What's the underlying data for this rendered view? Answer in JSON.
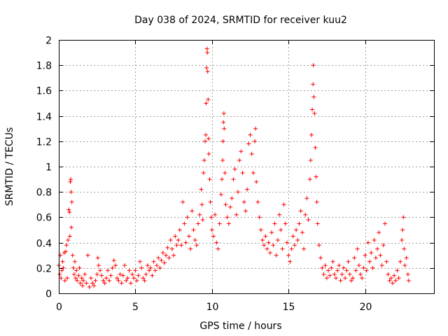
{
  "chart_data": {
    "type": "scatter",
    "title": "Day 038 of 2024, SRMTID for receiver kuu2",
    "xlabel": "GPS time / hours",
    "ylabel": "SRMTID / TECUs",
    "xlim": [
      0,
      24.5
    ],
    "ylim": [
      0,
      2
    ],
    "xticks": [
      0,
      5,
      10,
      15,
      20
    ],
    "yticks": [
      0,
      0.2,
      0.4,
      0.6,
      0.8,
      1,
      1.2,
      1.4,
      1.6,
      1.8,
      2
    ],
    "xtick_labels": [
      "0",
      "5",
      "10",
      "15",
      "20"
    ],
    "ytick_labels": [
      "0",
      "0.2",
      "0.4",
      "0.6",
      "0.8",
      "1",
      "1.2",
      "1.4",
      "1.6",
      "1.8",
      "2"
    ],
    "grid": true,
    "marker": "+",
    "color": "#ff0000",
    "series": [
      {
        "name": "SRMTID",
        "points": [
          [
            0.0,
            0.22
          ],
          [
            0.05,
            0.15
          ],
          [
            0.1,
            0.3
          ],
          [
            0.15,
            0.12
          ],
          [
            0.2,
            0.18
          ],
          [
            0.25,
            0.25
          ],
          [
            0.3,
            0.2
          ],
          [
            0.35,
            0.32
          ],
          [
            0.4,
            0.1
          ],
          [
            0.45,
            0.33
          ],
          [
            0.5,
            0.38
          ],
          [
            0.55,
            0.12
          ],
          [
            0.6,
            0.42
          ],
          [
            0.65,
            0.66
          ],
          [
            0.7,
            0.64
          ],
          [
            0.72,
            0.45
          ],
          [
            0.75,
            0.88
          ],
          [
            0.78,
            0.9
          ],
          [
            0.8,
            0.8
          ],
          [
            0.82,
            0.52
          ],
          [
            0.85,
            0.72
          ],
          [
            0.9,
            0.3
          ],
          [
            0.95,
            0.2
          ],
          [
            1.0,
            0.15
          ],
          [
            1.05,
            0.25
          ],
          [
            1.1,
            0.12
          ],
          [
            1.15,
            0.18
          ],
          [
            1.2,
            0.1
          ],
          [
            1.3,
            0.14
          ],
          [
            1.35,
            0.2
          ],
          [
            1.4,
            0.08
          ],
          [
            1.5,
            0.12
          ],
          [
            1.55,
            0.06
          ],
          [
            1.6,
            0.1
          ],
          [
            1.7,
            0.15
          ],
          [
            1.8,
            0.08
          ],
          [
            1.9,
            0.3
          ],
          [
            2.0,
            0.05
          ],
          [
            2.1,
            0.12
          ],
          [
            2.2,
            0.08
          ],
          [
            2.3,
            0.06
          ],
          [
            2.4,
            0.1
          ],
          [
            2.5,
            0.15
          ],
          [
            2.55,
            0.28
          ],
          [
            2.6,
            0.22
          ],
          [
            2.7,
            0.18
          ],
          [
            2.8,
            0.14
          ],
          [
            2.9,
            0.1
          ],
          [
            3.0,
            0.08
          ],
          [
            3.1,
            0.12
          ],
          [
            3.2,
            0.18
          ],
          [
            3.3,
            0.1
          ],
          [
            3.4,
            0.14
          ],
          [
            3.5,
            0.2
          ],
          [
            3.6,
            0.26
          ],
          [
            3.7,
            0.22
          ],
          [
            3.8,
            0.12
          ],
          [
            3.9,
            0.1
          ],
          [
            4.0,
            0.15
          ],
          [
            4.1,
            0.08
          ],
          [
            4.2,
            0.14
          ],
          [
            4.3,
            0.22
          ],
          [
            4.4,
            0.1
          ],
          [
            4.5,
            0.12
          ],
          [
            4.6,
            0.18
          ],
          [
            4.7,
            0.08
          ],
          [
            4.8,
            0.15
          ],
          [
            4.9,
            0.12
          ],
          [
            5.0,
            0.18
          ],
          [
            5.1,
            0.1
          ],
          [
            5.2,
            0.14
          ],
          [
            5.3,
            0.25
          ],
          [
            5.4,
            0.2
          ],
          [
            5.5,
            0.12
          ],
          [
            5.6,
            0.1
          ],
          [
            5.7,
            0.15
          ],
          [
            5.8,
            0.22
          ],
          [
            5.9,
            0.18
          ],
          [
            6.0,
            0.2
          ],
          [
            6.1,
            0.14
          ],
          [
            6.2,
            0.25
          ],
          [
            6.3,
            0.18
          ],
          [
            6.4,
            0.22
          ],
          [
            6.5,
            0.28
          ],
          [
            6.6,
            0.2
          ],
          [
            6.7,
            0.26
          ],
          [
            6.8,
            0.32
          ],
          [
            6.9,
            0.24
          ],
          [
            7.0,
            0.3
          ],
          [
            7.1,
            0.36
          ],
          [
            7.2,
            0.28
          ],
          [
            7.3,
            0.42
          ],
          [
            7.4,
            0.35
          ],
          [
            7.5,
            0.3
          ],
          [
            7.6,
            0.45
          ],
          [
            7.7,
            0.38
          ],
          [
            7.8,
            0.42
          ],
          [
            7.9,
            0.5
          ],
          [
            8.0,
            0.38
          ],
          [
            8.1,
            0.72
          ],
          [
            8.2,
            0.55
          ],
          [
            8.3,
            0.4
          ],
          [
            8.4,
            0.6
          ],
          [
            8.5,
            0.45
          ],
          [
            8.6,
            0.35
          ],
          [
            8.7,
            0.65
          ],
          [
            8.8,
            0.5
          ],
          [
            8.9,
            0.42
          ],
          [
            9.0,
            0.38
          ],
          [
            9.1,
            0.55
          ],
          [
            9.2,
            0.62
          ],
          [
            9.3,
            0.82
          ],
          [
            9.35,
            0.7
          ],
          [
            9.4,
            0.58
          ],
          [
            9.45,
            0.95
          ],
          [
            9.5,
            1.05
          ],
          [
            9.55,
            1.2
          ],
          [
            9.6,
            1.25
          ],
          [
            9.62,
            1.5
          ],
          [
            9.65,
            1.78
          ],
          [
            9.68,
            1.93
          ],
          [
            9.7,
            1.9
          ],
          [
            9.72,
            1.75
          ],
          [
            9.75,
            1.53
          ],
          [
            9.78,
            1.22
          ],
          [
            9.8,
            1.1
          ],
          [
            9.85,
            0.9
          ],
          [
            9.9,
            0.72
          ],
          [
            9.95,
            0.6
          ],
          [
            10.0,
            0.5
          ],
          [
            10.1,
            0.45
          ],
          [
            10.2,
            0.62
          ],
          [
            10.3,
            0.4
          ],
          [
            10.4,
            0.35
          ],
          [
            10.5,
            0.55
          ],
          [
            10.6,
            0.78
          ],
          [
            10.65,
            0.9
          ],
          [
            10.7,
            1.05
          ],
          [
            10.72,
            1.2
          ],
          [
            10.75,
            1.35
          ],
          [
            10.78,
            1.42
          ],
          [
            10.8,
            1.3
          ],
          [
            10.85,
            0.95
          ],
          [
            10.9,
            0.7
          ],
          [
            11.0,
            0.6
          ],
          [
            11.1,
            0.55
          ],
          [
            11.2,
            0.68
          ],
          [
            11.3,
            0.75
          ],
          [
            11.4,
            0.9
          ],
          [
            11.5,
            0.98
          ],
          [
            11.6,
            0.62
          ],
          [
            11.7,
            0.8
          ],
          [
            11.8,
            1.05
          ],
          [
            11.9,
            1.12
          ],
          [
            12.0,
            0.95
          ],
          [
            12.1,
            0.72
          ],
          [
            12.2,
            0.65
          ],
          [
            12.3,
            0.82
          ],
          [
            12.4,
            1.18
          ],
          [
            12.5,
            1.25
          ],
          [
            12.6,
            1.1
          ],
          [
            12.7,
            0.95
          ],
          [
            12.8,
            1.2
          ],
          [
            12.85,
            1.3
          ],
          [
            12.9,
            0.88
          ],
          [
            13.0,
            0.72
          ],
          [
            13.1,
            0.6
          ],
          [
            13.2,
            0.5
          ],
          [
            13.3,
            0.42
          ],
          [
            13.4,
            0.38
          ],
          [
            13.5,
            0.45
          ],
          [
            13.6,
            0.35
          ],
          [
            13.7,
            0.4
          ],
          [
            13.8,
            0.32
          ],
          [
            13.9,
            0.48
          ],
          [
            14.0,
            0.38
          ],
          [
            14.1,
            0.55
          ],
          [
            14.2,
            0.3
          ],
          [
            14.3,
            0.42
          ],
          [
            14.4,
            0.62
          ],
          [
            14.5,
            0.5
          ],
          [
            14.6,
            0.35
          ],
          [
            14.7,
            0.7
          ],
          [
            14.8,
            0.55
          ],
          [
            14.9,
            0.4
          ],
          [
            15.0,
            0.3
          ],
          [
            15.1,
            0.25
          ],
          [
            15.2,
            0.35
          ],
          [
            15.3,
            0.45
          ],
          [
            15.4,
            0.38
          ],
          [
            15.5,
            0.5
          ],
          [
            15.6,
            0.42
          ],
          [
            15.7,
            0.55
          ],
          [
            15.8,
            0.65
          ],
          [
            15.9,
            0.48
          ],
          [
            16.0,
            0.35
          ],
          [
            16.1,
            0.62
          ],
          [
            16.2,
            0.75
          ],
          [
            16.3,
            0.58
          ],
          [
            16.4,
            0.9
          ],
          [
            16.45,
            1.05
          ],
          [
            16.5,
            1.25
          ],
          [
            16.55,
            1.45
          ],
          [
            16.6,
            1.65
          ],
          [
            16.62,
            1.8
          ],
          [
            16.65,
            1.55
          ],
          [
            16.7,
            1.42
          ],
          [
            16.75,
            1.15
          ],
          [
            16.8,
            0.92
          ],
          [
            16.85,
            0.72
          ],
          [
            16.9,
            0.55
          ],
          [
            17.0,
            0.38
          ],
          [
            17.1,
            0.28
          ],
          [
            17.2,
            0.2
          ],
          [
            17.3,
            0.15
          ],
          [
            17.4,
            0.22
          ],
          [
            17.5,
            0.12
          ],
          [
            17.6,
            0.18
          ],
          [
            17.7,
            0.14
          ],
          [
            17.8,
            0.2
          ],
          [
            17.9,
            0.25
          ],
          [
            18.0,
            0.15
          ],
          [
            18.1,
            0.12
          ],
          [
            18.2,
            0.18
          ],
          [
            18.3,
            0.22
          ],
          [
            18.4,
            0.1
          ],
          [
            18.5,
            0.15
          ],
          [
            18.6,
            0.2
          ],
          [
            18.7,
            0.12
          ],
          [
            18.8,
            0.18
          ],
          [
            18.9,
            0.25
          ],
          [
            19.0,
            0.15
          ],
          [
            19.1,
            0.1
          ],
          [
            19.2,
            0.12
          ],
          [
            19.3,
            0.28
          ],
          [
            19.4,
            0.18
          ],
          [
            19.5,
            0.35
          ],
          [
            19.6,
            0.22
          ],
          [
            19.7,
            0.15
          ],
          [
            19.8,
            0.12
          ],
          [
            19.9,
            0.2
          ],
          [
            20.0,
            0.3
          ],
          [
            20.1,
            0.18
          ],
          [
            20.2,
            0.4
          ],
          [
            20.3,
            0.25
          ],
          [
            20.4,
            0.32
          ],
          [
            20.5,
            0.2
          ],
          [
            20.6,
            0.42
          ],
          [
            20.7,
            0.28
          ],
          [
            20.8,
            0.35
          ],
          [
            20.9,
            0.48
          ],
          [
            21.0,
            0.3
          ],
          [
            21.1,
            0.22
          ],
          [
            21.2,
            0.38
          ],
          [
            21.3,
            0.55
          ],
          [
            21.4,
            0.25
          ],
          [
            21.5,
            0.15
          ],
          [
            21.6,
            0.1
          ],
          [
            21.7,
            0.12
          ],
          [
            21.8,
            0.08
          ],
          [
            21.9,
            0.14
          ],
          [
            22.0,
            0.1
          ],
          [
            22.1,
            0.18
          ],
          [
            22.2,
            0.12
          ],
          [
            22.3,
            0.25
          ],
          [
            22.4,
            0.42
          ],
          [
            22.45,
            0.5
          ],
          [
            22.5,
            0.6
          ],
          [
            22.55,
            0.35
          ],
          [
            22.6,
            0.22
          ],
          [
            22.7,
            0.28
          ],
          [
            22.8,
            0.15
          ],
          [
            22.85,
            0.1
          ]
        ]
      }
    ]
  }
}
